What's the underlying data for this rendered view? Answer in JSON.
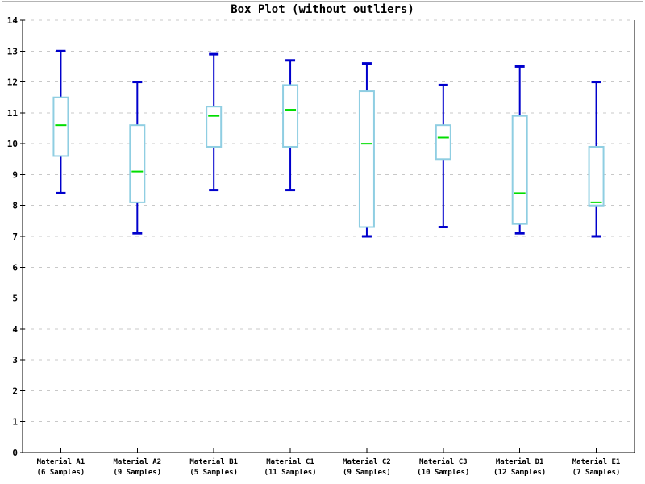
{
  "window": {
    "title": "Box Plot (without outliers)"
  },
  "chart_data": {
    "type": "boxplot",
    "title": "Box Plot (without outliers)",
    "xlabel": "",
    "ylabel": "",
    "ylim": [
      0,
      14
    ],
    "ytick_step": 1,
    "ytick_labels": [
      "0",
      "1",
      "2",
      "3",
      "4",
      "5",
      "6",
      "7",
      "8",
      "9",
      "10",
      "11",
      "12",
      "13",
      "14"
    ],
    "grid": "horizontal-dashed",
    "legend": "none",
    "categories": [
      "Material A1",
      "Material A2",
      "Material B1",
      "Material C1",
      "Material C2",
      "Material C3",
      "Material D1",
      "Material E1"
    ],
    "sample_labels": [
      "(6 Samples)",
      "(9 Samples)",
      "(5 Samples)",
      "(11 Samples)",
      "(9 Samples)",
      "(10 Samples)",
      "(12 Samples)",
      "(7 Samples)"
    ],
    "series": [
      {
        "category": "Material A1",
        "samples": 6,
        "min": 8.4,
        "q1": 9.6,
        "median": 10.6,
        "q3": 11.5,
        "max": 13.0
      },
      {
        "category": "Material A2",
        "samples": 9,
        "min": 7.1,
        "q1": 8.1,
        "median": 9.1,
        "q3": 10.6,
        "max": 12.0
      },
      {
        "category": "Material B1",
        "samples": 5,
        "min": 8.5,
        "q1": 9.9,
        "median": 10.9,
        "q3": 11.2,
        "max": 12.9
      },
      {
        "category": "Material C1",
        "samples": 11,
        "min": 8.5,
        "q1": 9.9,
        "median": 11.1,
        "q3": 11.9,
        "max": 12.7
      },
      {
        "category": "Material C2",
        "samples": 9,
        "min": 7.0,
        "q1": 7.3,
        "median": 10.0,
        "q3": 11.7,
        "max": 12.6
      },
      {
        "category": "Material C3",
        "samples": 10,
        "min": 7.3,
        "q1": 9.5,
        "median": 10.2,
        "q3": 10.6,
        "max": 11.9
      },
      {
        "category": "Material D1",
        "samples": 12,
        "min": 7.1,
        "q1": 7.4,
        "median": 8.4,
        "q3": 10.9,
        "max": 12.5
      },
      {
        "category": "Material E1",
        "samples": 7,
        "min": 7.0,
        "q1": 8.0,
        "median": 8.1,
        "q3": 9.9,
        "max": 12.0
      }
    ],
    "colors": {
      "whisker": "#0000cc",
      "box_border": "#8fcee2",
      "box_fill": "#ffffff",
      "median": "#00dd00",
      "grid": "#c8c8c8",
      "axis": "#000000",
      "text": "#000000",
      "background": "#ffffff",
      "outer_border": "#b4b4b4"
    }
  }
}
